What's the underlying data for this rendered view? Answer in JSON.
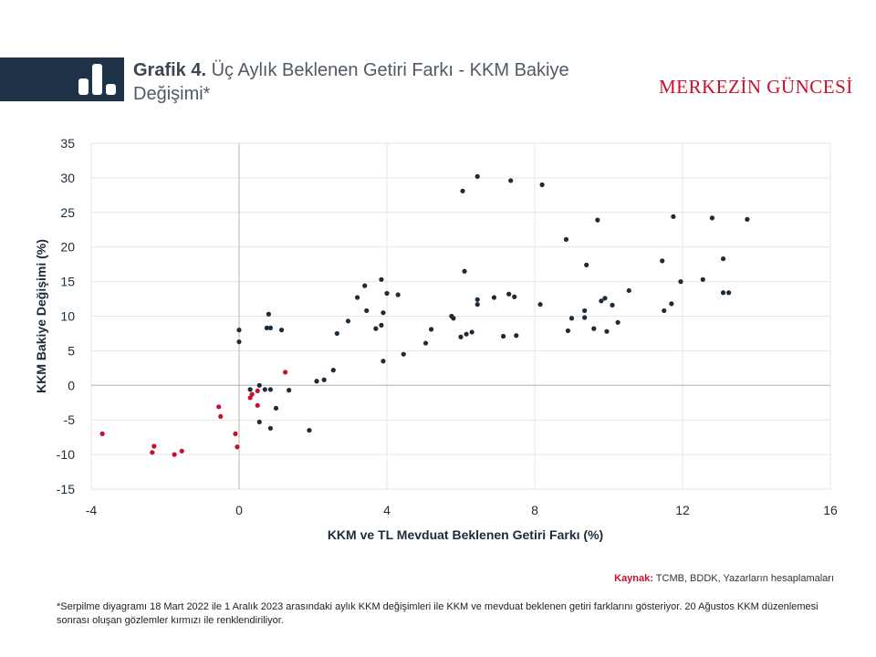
{
  "header": {
    "title_prefix": "Grafik 4.",
    "title_text": "Üç Aylık Beklenen Getiri Farkı - KKM Bakiye Değişimi*",
    "brand": "MERKEZİN GÜNCESİ"
  },
  "footer": {
    "source_label": "Kaynak:",
    "source_text": "TCMB, BDDK, Yazarların hesaplamaları",
    "note": "*Serpilme diyagramı 18 Mart 2022 ile 1 Aralık 2023 arasındaki aylık KKM değişimleri ile KKM ve mevduat beklenen getiri farklarını gösteriyor. 20 Ağustos KKM düzenlemesi sonrası oluşan gözlemler kırmızı ile renklendiriliyor."
  },
  "chart_data": {
    "type": "scatter",
    "xlabel": "KKM ve TL Mevduat Beklenen Getiri Farkı (%)",
    "ylabel": "KKM Bakiye Değişimi (%)",
    "xlim": [
      -4,
      16
    ],
    "ylim": [
      -15,
      35
    ],
    "xticks": [
      -4,
      0,
      4,
      8,
      12,
      16
    ],
    "yticks": [
      -15,
      -10,
      -5,
      0,
      5,
      10,
      15,
      20,
      25,
      30,
      35
    ],
    "grid": true,
    "colors": {
      "navy": "#1c2b3c",
      "red": "#c8102e",
      "grid": "#e6e6e6",
      "zero": "#b4b4b4"
    },
    "series": [
      {
        "color": "#1c2b3c",
        "points": [
          [
            0.0,
            8.0
          ],
          [
            0.0,
            6.3
          ],
          [
            0.75,
            8.3
          ],
          [
            0.85,
            8.3
          ],
          [
            0.8,
            10.3
          ],
          [
            1.15,
            8.0
          ],
          [
            0.3,
            -0.6
          ],
          [
            0.55,
            0.0
          ],
          [
            0.7,
            -0.6
          ],
          [
            0.85,
            -0.6
          ],
          [
            0.55,
            -5.3
          ],
          [
            0.85,
            -6.2
          ],
          [
            1.0,
            -3.3
          ],
          [
            1.35,
            -0.7
          ],
          [
            1.9,
            -6.5
          ],
          [
            2.1,
            0.6
          ],
          [
            2.3,
            0.8
          ],
          [
            2.55,
            2.2
          ],
          [
            2.65,
            7.5
          ],
          [
            2.95,
            9.3
          ],
          [
            3.2,
            12.7
          ],
          [
            3.4,
            14.4
          ],
          [
            3.45,
            10.8
          ],
          [
            3.7,
            8.2
          ],
          [
            3.85,
            8.7
          ],
          [
            3.9,
            10.5
          ],
          [
            3.85,
            15.3
          ],
          [
            4.0,
            13.3
          ],
          [
            4.3,
            13.1
          ],
          [
            3.9,
            3.5
          ],
          [
            4.45,
            4.5
          ],
          [
            5.05,
            6.1
          ],
          [
            5.2,
            8.1
          ],
          [
            5.75,
            10.0
          ],
          [
            5.8,
            9.7
          ],
          [
            6.0,
            7.0
          ],
          [
            6.15,
            7.4
          ],
          [
            6.3,
            7.7
          ],
          [
            6.05,
            28.1
          ],
          [
            6.1,
            16.5
          ],
          [
            6.45,
            11.7
          ],
          [
            6.45,
            12.4
          ],
          [
            6.45,
            30.2
          ],
          [
            6.9,
            12.7
          ],
          [
            7.15,
            7.1
          ],
          [
            7.3,
            13.2
          ],
          [
            7.35,
            29.6
          ],
          [
            7.45,
            12.8
          ],
          [
            7.5,
            7.2
          ],
          [
            8.15,
            11.7
          ],
          [
            8.2,
            29.0
          ],
          [
            8.85,
            21.1
          ],
          [
            8.9,
            7.9
          ],
          [
            9.0,
            9.7
          ],
          [
            9.35,
            10.8
          ],
          [
            9.35,
            9.8
          ],
          [
            9.4,
            17.4
          ],
          [
            9.6,
            8.2
          ],
          [
            9.7,
            23.9
          ],
          [
            9.8,
            12.2
          ],
          [
            9.9,
            12.6
          ],
          [
            9.95,
            7.8
          ],
          [
            10.1,
            11.6
          ],
          [
            10.25,
            9.1
          ],
          [
            10.55,
            13.7
          ],
          [
            11.45,
            18.0
          ],
          [
            11.5,
            10.8
          ],
          [
            11.7,
            11.8
          ],
          [
            11.75,
            24.4
          ],
          [
            11.95,
            15.0
          ],
          [
            12.55,
            15.3
          ],
          [
            12.8,
            24.2
          ],
          [
            13.1,
            13.4
          ],
          [
            13.1,
            18.3
          ],
          [
            13.25,
            13.4
          ],
          [
            13.75,
            24.0
          ]
        ]
      },
      {
        "color": "#c8102e",
        "points": [
          [
            -3.7,
            -7.0
          ],
          [
            -2.35,
            -9.7
          ],
          [
            -2.3,
            -8.8
          ],
          [
            -1.75,
            -10.0
          ],
          [
            -1.55,
            -9.5
          ],
          [
            -0.55,
            -3.1
          ],
          [
            -0.5,
            -4.5
          ],
          [
            -0.1,
            -7.0
          ],
          [
            -0.05,
            -8.9
          ],
          [
            0.3,
            -1.8
          ],
          [
            0.35,
            -1.3
          ],
          [
            0.5,
            -0.8
          ],
          [
            0.5,
            -2.9
          ],
          [
            1.25,
            1.9
          ]
        ]
      }
    ]
  }
}
